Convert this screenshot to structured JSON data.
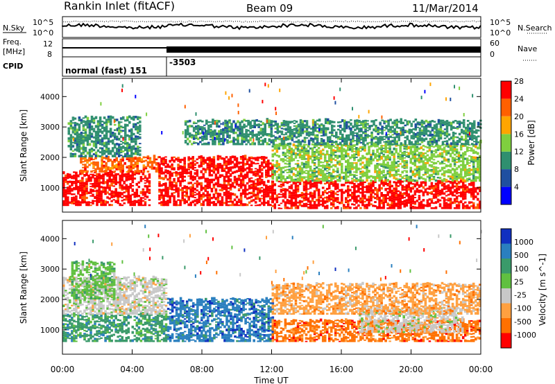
{
  "header": {
    "station": "Rankin Inlet (fitACF)",
    "beam": "Beam 09",
    "date": "11/Mar/2014"
  },
  "panels": {
    "nsky": {
      "label": "N.Sky",
      "right_label": "N.Search",
      "ticks_left": [
        "10^5",
        "10^0"
      ],
      "ticks_right": [
        "10^5",
        "10^0"
      ]
    },
    "freq": {
      "label_top": "Freq.",
      "label_bottom": "[MHz]",
      "right_label": "Nave",
      "ticks_left": [
        "12",
        "8"
      ],
      "ticks_right": [
        "60",
        "0"
      ]
    },
    "cpid": {
      "label": "CPID",
      "entries": [
        "normal (fast) 151",
        "-3503"
      ]
    }
  },
  "colors": {
    "power": [
      "#0000ff",
      "#1f4fa0",
      "#2f8f6f",
      "#7fcf3f",
      "#ffa500",
      "#ff6000",
      "#ff0000"
    ],
    "velocity": [
      "#1030c0",
      "#2a7fbf",
      "#3a9a6a",
      "#60c040",
      "#c8c8c8",
      "#ffa040",
      "#ff7000",
      "#ff0000"
    ]
  },
  "chart_data": [
    {
      "type": "heatmap",
      "ylabel": "Slant Range [km]",
      "yticks": [
        "1000",
        "2000",
        "3000",
        "4000"
      ],
      "ylim": [
        200,
        4600
      ],
      "colorbar": {
        "label": "Power [dB]",
        "ticks": [
          "4",
          "8",
          "12",
          "16",
          "20",
          "24",
          "28"
        ]
      },
      "regions": [
        {
          "t": [
            0,
            5
          ],
          "r": [
            400,
            1500
          ],
          "level": 6
        },
        {
          "t": [
            1,
            5.5
          ],
          "r": [
            1500,
            2000
          ],
          "level": 5
        },
        {
          "t": [
            0.3,
            4.5
          ],
          "r": [
            2000,
            3300
          ],
          "level": 2
        },
        {
          "t": [
            5.5,
            12
          ],
          "r": [
            400,
            2000
          ],
          "level": 6
        },
        {
          "t": [
            12,
            24
          ],
          "r": [
            300,
            1200
          ],
          "level": 6
        },
        {
          "t": [
            12,
            24
          ],
          "r": [
            1200,
            2400
          ],
          "level": 3
        },
        {
          "t": [
            7,
            24
          ],
          "r": [
            2400,
            3200
          ],
          "level": 2
        }
      ]
    },
    {
      "type": "heatmap",
      "ylabel": "Slant Range [km]",
      "yticks": [
        "1000",
        "2000",
        "3000",
        "4000"
      ],
      "ylim": [
        200,
        4600
      ],
      "xlabel": "Time UT",
      "xticks": [
        "00:00",
        "04:00",
        "08:00",
        "12:00",
        "16:00",
        "20:00",
        "00:00"
      ],
      "xlim": [
        0,
        24
      ],
      "colorbar": {
        "label": "Velocity [m s^-1]",
        "ticks": [
          "1000",
          "500",
          "100",
          "25",
          "-25",
          "-100",
          "-500",
          "-1000"
        ]
      },
      "regions": [
        {
          "t": [
            0,
            6
          ],
          "r": [
            600,
            1500
          ],
          "level": 2
        },
        {
          "t": [
            0,
            6
          ],
          "r": [
            1500,
            2700
          ],
          "level": 4
        },
        {
          "t": [
            0.5,
            3
          ],
          "r": [
            2000,
            3200
          ],
          "level": 3
        },
        {
          "t": [
            6,
            12
          ],
          "r": [
            600,
            2000
          ],
          "level": 1
        },
        {
          "t": [
            12,
            24
          ],
          "r": [
            600,
            1300
          ],
          "level": 6
        },
        {
          "t": [
            17,
            23
          ],
          "r": [
            900,
            1700
          ],
          "level": 4
        },
        {
          "t": [
            12,
            24
          ],
          "r": [
            1500,
            2500
          ],
          "level": 5
        }
      ]
    }
  ]
}
